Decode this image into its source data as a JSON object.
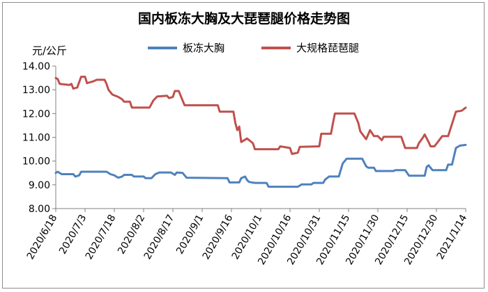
{
  "chart_data": {
    "type": "line",
    "title": "国内板冻大胸及大琵琶腿价格走势图",
    "ylabel": "元/公斤",
    "ylim": [
      8.0,
      14.0
    ],
    "yticks": [
      "8.00",
      "9.00",
      "10.00",
      "11.00",
      "12.00",
      "13.00",
      "14.00"
    ],
    "xtick_labels": [
      "2020/6/18",
      "2020/7/3",
      "2020/7/18",
      "2020/8/2",
      "2020/8/17",
      "2020/9/1",
      "2020/9/16",
      "2020/10/1",
      "2020/10/16",
      "2020/10/31",
      "2020/11/15",
      "2020/11/30",
      "2020/12/15",
      "2020/12/30",
      "2021/1/14"
    ],
    "grid": false,
    "legend_position": "top",
    "series": [
      {
        "name": "板冻大胸",
        "color": "#4f81bd",
        "points": [
          [
            "2020/6/18",
            9.5
          ],
          [
            "2020/6/19",
            9.55
          ],
          [
            "2020/6/21",
            9.45
          ],
          [
            "2020/6/27",
            9.45
          ],
          [
            "2020/6/28",
            9.35
          ],
          [
            "2020/6/30",
            9.4
          ],
          [
            "2020/7/1",
            9.55
          ],
          [
            "2020/7/3",
            9.55
          ],
          [
            "2020/7/14",
            9.55
          ],
          [
            "2020/7/16",
            9.45
          ],
          [
            "2020/7/18",
            9.4
          ],
          [
            "2020/7/20",
            9.3
          ],
          [
            "2020/7/22",
            9.35
          ],
          [
            "2020/7/23",
            9.42
          ],
          [
            "2020/7/27",
            9.42
          ],
          [
            "2020/7/28",
            9.35
          ],
          [
            "2020/8/2",
            9.35
          ],
          [
            "2020/8/3",
            9.28
          ],
          [
            "2020/8/6",
            9.28
          ],
          [
            "2020/8/8",
            9.45
          ],
          [
            "2020/8/10",
            9.52
          ],
          [
            "2020/8/16",
            9.52
          ],
          [
            "2020/8/18",
            9.42
          ],
          [
            "2020/8/19",
            9.52
          ],
          [
            "2020/8/22",
            9.5
          ],
          [
            "2020/8/24",
            9.3
          ],
          [
            "2020/9/14",
            9.28
          ],
          [
            "2020/9/15",
            9.1
          ],
          [
            "2020/9/20",
            9.1
          ],
          [
            "2020/9/21",
            9.28
          ],
          [
            "2020/9/23",
            9.35
          ],
          [
            "2020/9/24",
            9.2
          ],
          [
            "2020/9/25",
            9.12
          ],
          [
            "2020/9/28",
            9.08
          ],
          [
            "2020/10/4",
            9.08
          ],
          [
            "2020/10/5",
            8.92
          ],
          [
            "2020/10/20",
            8.92
          ],
          [
            "2020/10/22",
            9.02
          ],
          [
            "2020/10/27",
            9.02
          ],
          [
            "2020/10/28",
            9.08
          ],
          [
            "2020/11/2",
            9.08
          ],
          [
            "2020/11/3",
            9.22
          ],
          [
            "2020/11/5",
            9.35
          ],
          [
            "2020/11/10",
            9.35
          ],
          [
            "2020/11/12",
            9.9
          ],
          [
            "2020/11/14",
            10.1
          ],
          [
            "2020/11/22",
            10.1
          ],
          [
            "2020/11/24",
            9.78
          ],
          [
            "2020/11/25",
            9.72
          ],
          [
            "2020/11/28",
            9.72
          ],
          [
            "2020/11/29",
            9.58
          ],
          [
            "2020/12/8",
            9.58
          ],
          [
            "2020/12/9",
            9.62
          ],
          [
            "2020/12/14",
            9.62
          ],
          [
            "2020/12/16",
            9.38
          ],
          [
            "2020/12/24",
            9.38
          ],
          [
            "2020/12/25",
            9.75
          ],
          [
            "2020/12/26",
            9.82
          ],
          [
            "2020/12/28",
            9.62
          ],
          [
            "2021/1/4",
            9.62
          ],
          [
            "2021/1/5",
            9.85
          ],
          [
            "2021/1/7",
            9.85
          ],
          [
            "2021/1/9",
            10.55
          ],
          [
            "2021/1/11",
            10.65
          ],
          [
            "2021/1/14",
            10.68
          ]
        ]
      },
      {
        "name": "大规格琵琶腿",
        "color": "#c0504d",
        "points": [
          [
            "2020/6/18",
            13.5
          ],
          [
            "2020/6/19",
            13.45
          ],
          [
            "2020/6/20",
            13.25
          ],
          [
            "2020/6/25",
            13.2
          ],
          [
            "2020/6/26",
            13.25
          ],
          [
            "2020/6/27",
            13.05
          ],
          [
            "2020/6/29",
            13.1
          ],
          [
            "2020/7/1",
            13.55
          ],
          [
            "2020/7/3",
            13.55
          ],
          [
            "2020/7/4",
            13.28
          ],
          [
            "2020/7/7",
            13.35
          ],
          [
            "2020/7/9",
            13.42
          ],
          [
            "2020/7/13",
            13.42
          ],
          [
            "2020/7/14",
            13.25
          ],
          [
            "2020/7/15",
            13.0
          ],
          [
            "2020/7/17",
            12.8
          ],
          [
            "2020/7/20",
            12.7
          ],
          [
            "2020/7/22",
            12.6
          ],
          [
            "2020/7/23",
            12.5
          ],
          [
            "2020/7/26",
            12.5
          ],
          [
            "2020/7/27",
            12.25
          ],
          [
            "2020/8/5",
            12.25
          ],
          [
            "2020/8/7",
            12.55
          ],
          [
            "2020/8/9",
            12.72
          ],
          [
            "2020/8/14",
            12.75
          ],
          [
            "2020/8/15",
            12.65
          ],
          [
            "2020/8/17",
            12.7
          ],
          [
            "2020/8/18",
            12.95
          ],
          [
            "2020/8/20",
            12.95
          ],
          [
            "2020/8/23",
            12.35
          ],
          [
            "2020/9/9",
            12.35
          ],
          [
            "2020/9/10",
            12.08
          ],
          [
            "2020/9/17",
            12.08
          ],
          [
            "2020/9/18",
            11.6
          ],
          [
            "2020/9/19",
            11.3
          ],
          [
            "2020/9/20",
            11.45
          ],
          [
            "2020/9/21",
            10.8
          ],
          [
            "2020/9/24",
            10.95
          ],
          [
            "2020/9/27",
            10.75
          ],
          [
            "2020/9/28",
            10.5
          ],
          [
            "2020/10/10",
            10.5
          ],
          [
            "2020/10/11",
            10.62
          ],
          [
            "2020/10/16",
            10.55
          ],
          [
            "2020/10/17",
            10.3
          ],
          [
            "2020/10/20",
            10.35
          ],
          [
            "2020/10/21",
            10.6
          ],
          [
            "2020/10/31",
            10.62
          ],
          [
            "2020/11/1",
            11.15
          ],
          [
            "2020/11/6",
            11.15
          ],
          [
            "2020/11/7",
            11.6
          ],
          [
            "2020/11/8",
            12.0
          ],
          [
            "2020/11/18",
            12.0
          ],
          [
            "2020/11/20",
            11.6
          ],
          [
            "2020/11/21",
            11.25
          ],
          [
            "2020/11/24",
            10.92
          ],
          [
            "2020/11/26",
            11.3
          ],
          [
            "2020/11/28",
            11.05
          ],
          [
            "2020/11/30",
            11.05
          ],
          [
            "2020/12/2",
            10.88
          ],
          [
            "2020/12/3",
            11.02
          ],
          [
            "2020/12/12",
            11.02
          ],
          [
            "2020/12/14",
            10.55
          ],
          [
            "2020/12/20",
            10.55
          ],
          [
            "2020/12/21",
            10.75
          ],
          [
            "2020/12/23",
            10.98
          ],
          [
            "2020/12/24",
            11.12
          ],
          [
            "2020/12/26",
            10.8
          ],
          [
            "2020/12/27",
            10.62
          ],
          [
            "2020/12/29",
            10.62
          ],
          [
            "2021/1/2",
            11.05
          ],
          [
            "2021/1/5",
            11.05
          ],
          [
            "2021/1/9",
            12.08
          ],
          [
            "2021/1/12",
            12.12
          ],
          [
            "2021/1/14",
            12.25
          ]
        ]
      }
    ]
  }
}
